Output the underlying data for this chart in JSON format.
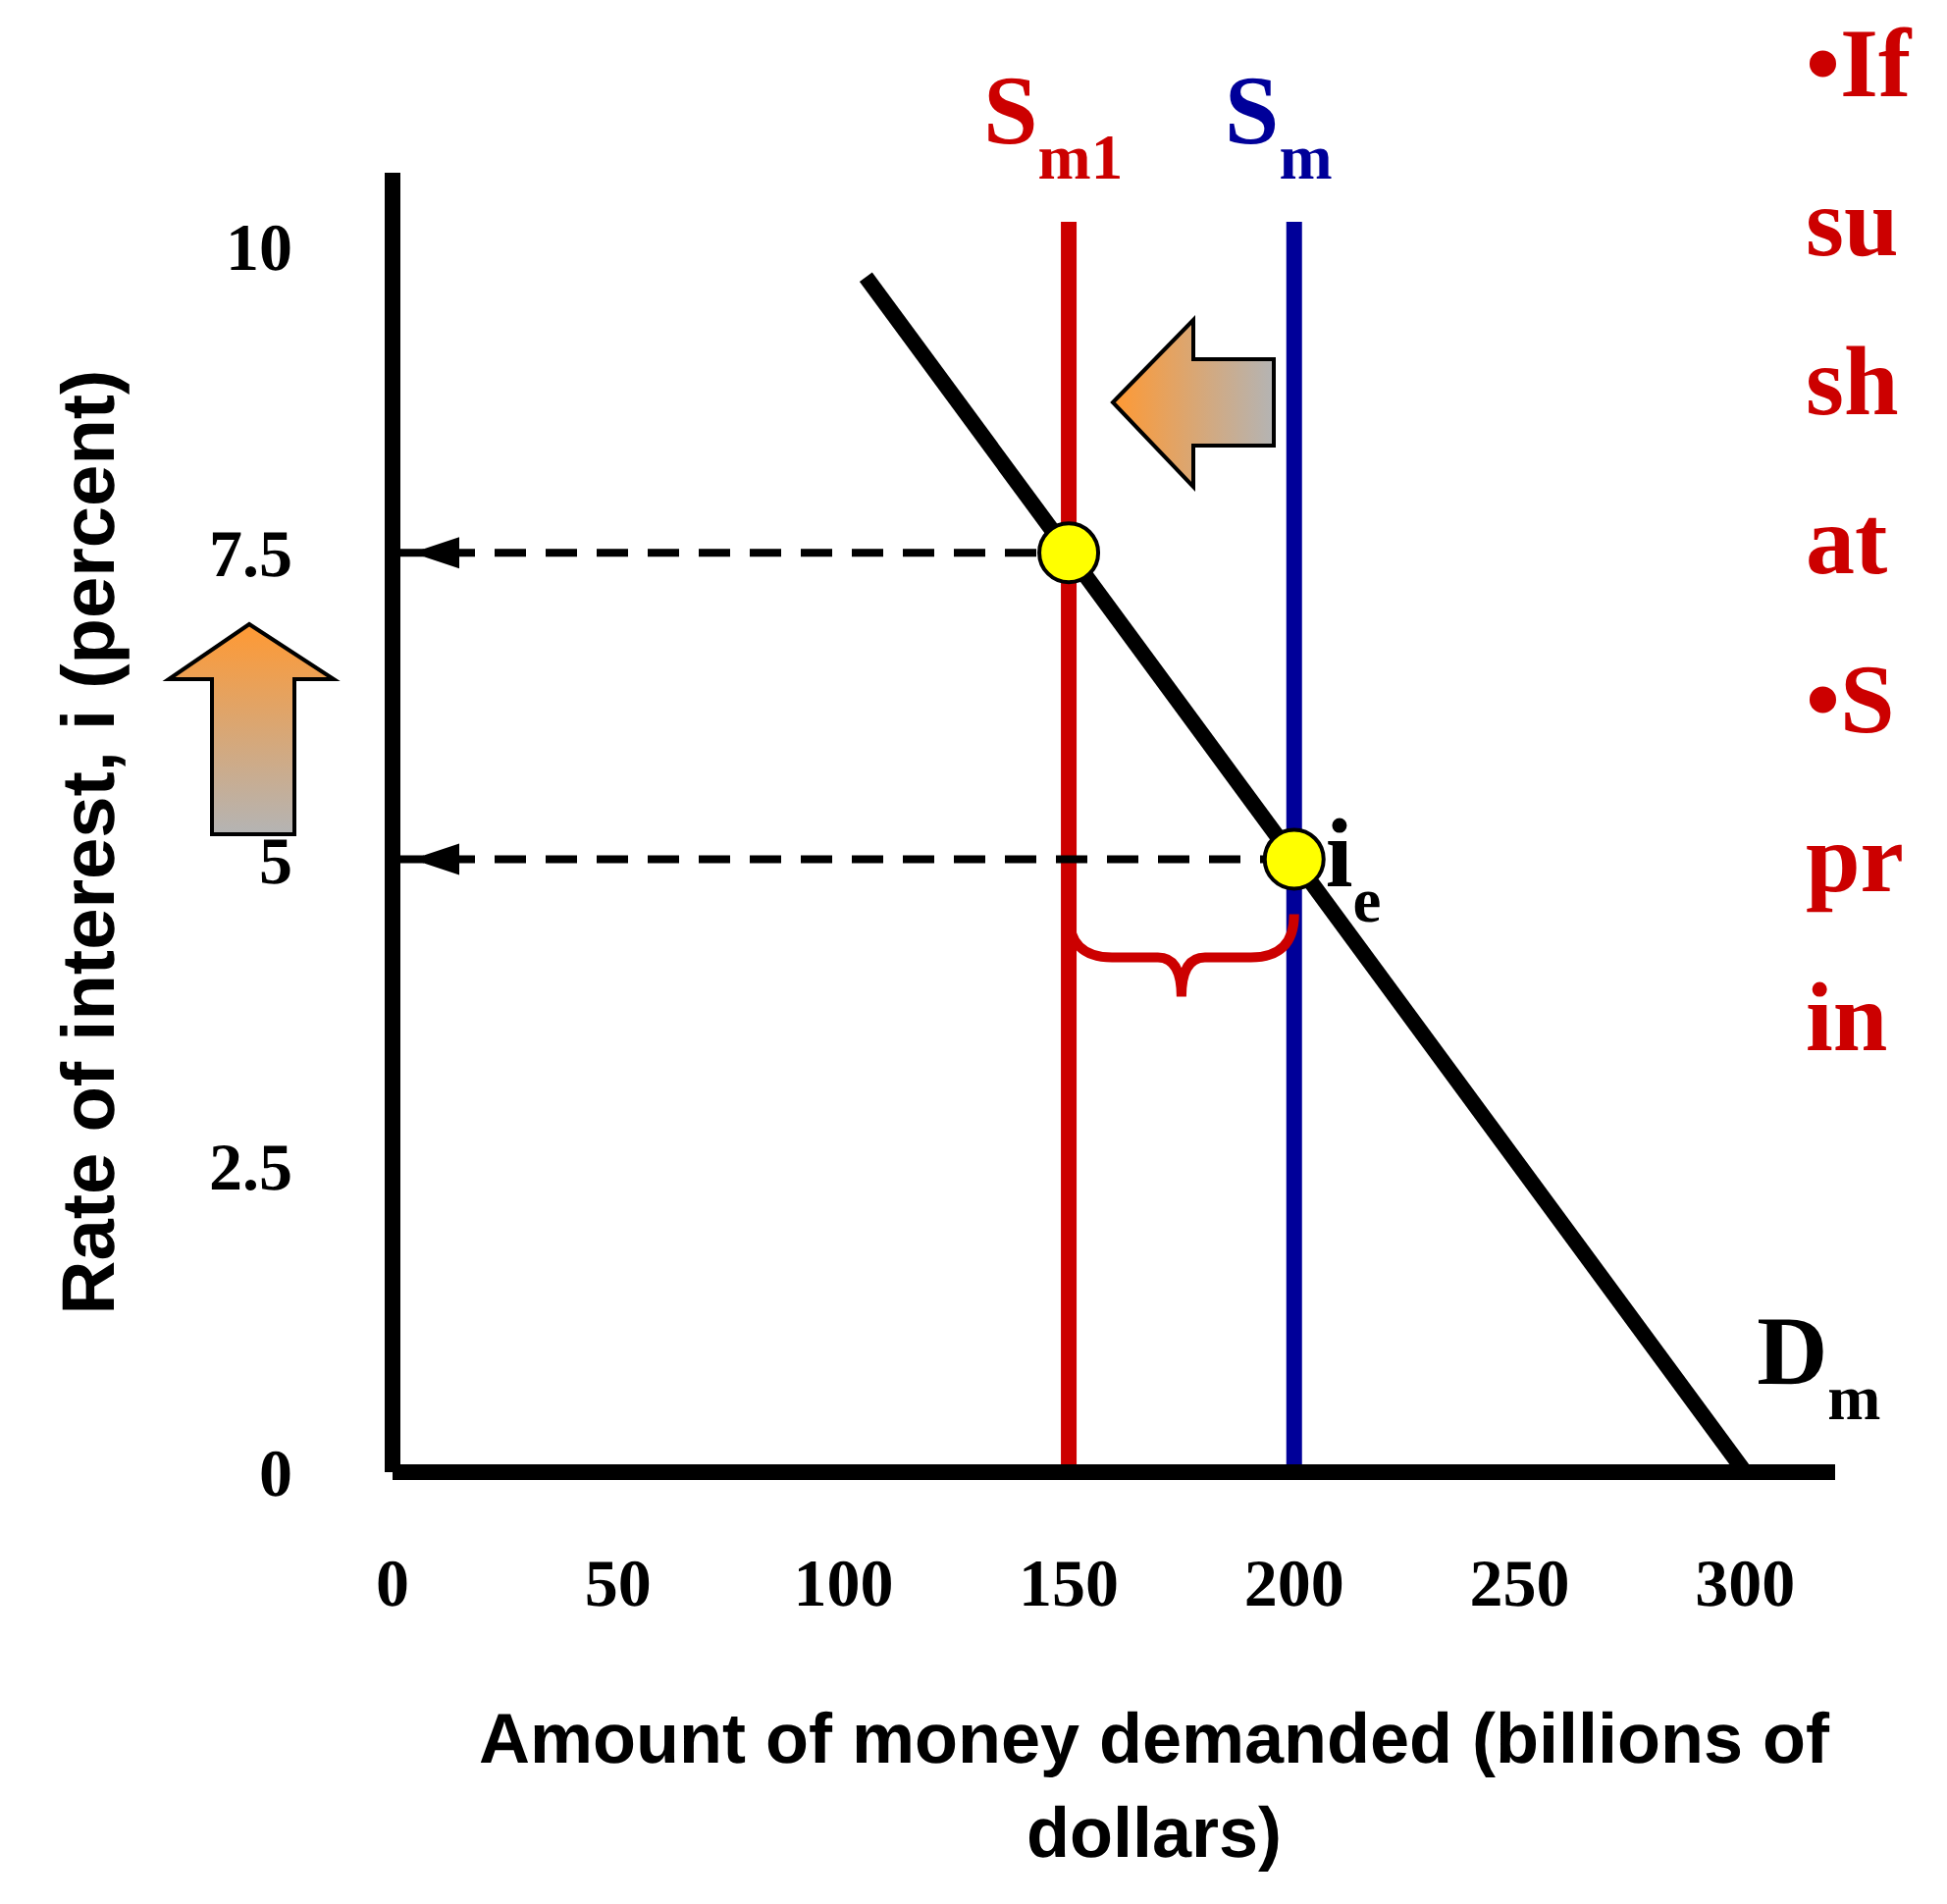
{
  "chart_data": {
    "type": "line",
    "xlabel": "Amount of money demanded (billions of dollars)",
    "ylabel": "Rate of interest, i (percent)",
    "xlim": [
      0,
      320
    ],
    "xticks": [
      0,
      50,
      100,
      150,
      200,
      250,
      300
    ],
    "ylim": [
      0,
      10.6
    ],
    "yticks": [
      0,
      2.5,
      5,
      7.5,
      10
    ],
    "grid": false,
    "legend": false,
    "series": [
      {
        "name": "S$_{m1}$",
        "color": "#cc0000",
        "x": [
          150,
          150
        ],
        "values": [
          0,
          10.2
        ]
      },
      {
        "name": "S$_{m}$",
        "color": "#000099",
        "x": [
          200,
          200
        ],
        "values": [
          0,
          10.2
        ]
      },
      {
        "name": "D$_{m}$",
        "color": "#000000",
        "x": [
          105,
          300
        ],
        "values": [
          9.75,
          0
        ]
      },
      {
        "color": "#000000",
        "x": [
          0,
          150
        ],
        "values": [
          7.5,
          7.5
        ],
        "line_style": "dashed"
      },
      {
        "color": "#000000",
        "x": [
          0,
          200
        ],
        "values": [
          5,
          5
        ],
        "line_style": "dashed"
      },
      {
        "type": "scatter",
        "color": "#ffff00",
        "x": [
          150,
          200
        ],
        "values": [
          7.5,
          5
        ],
        "marker": "circle"
      }
    ],
    "annotations": [
      {
        "text": "i$_{e}$",
        "x": 200,
        "y": 5
      },
      "•If",
      "su",
      "sh",
      "at",
      "•S",
      "pr",
      "in"
    ]
  }
}
